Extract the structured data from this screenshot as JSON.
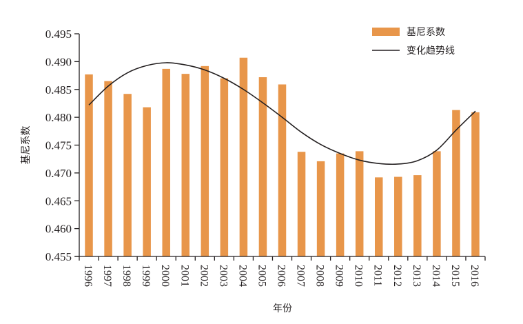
{
  "chart_data": {
    "type": "bar",
    "title": "",
    "xlabel": "年份",
    "ylabel": "基尼系数",
    "ylim": [
      0.455,
      0.495
    ],
    "yticks": [
      "0.455",
      "0.460",
      "0.465",
      "0.470",
      "0.475",
      "0.480",
      "0.485",
      "0.490",
      "0.495"
    ],
    "categories": [
      "1996",
      "1997",
      "1998",
      "1999",
      "2000",
      "2001",
      "2002",
      "2003",
      "2004",
      "2005",
      "2006",
      "2007",
      "2008",
      "2009",
      "2010",
      "2011",
      "2012",
      "2013",
      "2014",
      "2015",
      "2016"
    ],
    "series": [
      {
        "name": "基尼系数",
        "type": "bar",
        "color": "#e8964a",
        "values": [
          0.4877,
          0.4865,
          0.4842,
          0.4818,
          0.4887,
          0.4878,
          0.4892,
          0.487,
          0.4907,
          0.4872,
          0.4859,
          0.4738,
          0.4721,
          0.4735,
          0.4739,
          0.4692,
          0.4693,
          0.4696,
          0.4739,
          0.4813,
          0.4809
        ]
      },
      {
        "name": "变化趋势线",
        "type": "line",
        "color": "#231f20",
        "smooth": true,
        "values": [
          0.4822,
          0.4856,
          0.488,
          0.4893,
          0.4898,
          0.4894,
          0.4885,
          0.487,
          0.485,
          0.4826,
          0.48,
          0.4773,
          0.4751,
          0.4735,
          0.4723,
          0.4717,
          0.4716,
          0.4722,
          0.4741,
          0.4777,
          0.4811
        ]
      }
    ],
    "grid": false,
    "legend": "top-right",
    "x_tick_rotation": "90deg-clockwise"
  }
}
